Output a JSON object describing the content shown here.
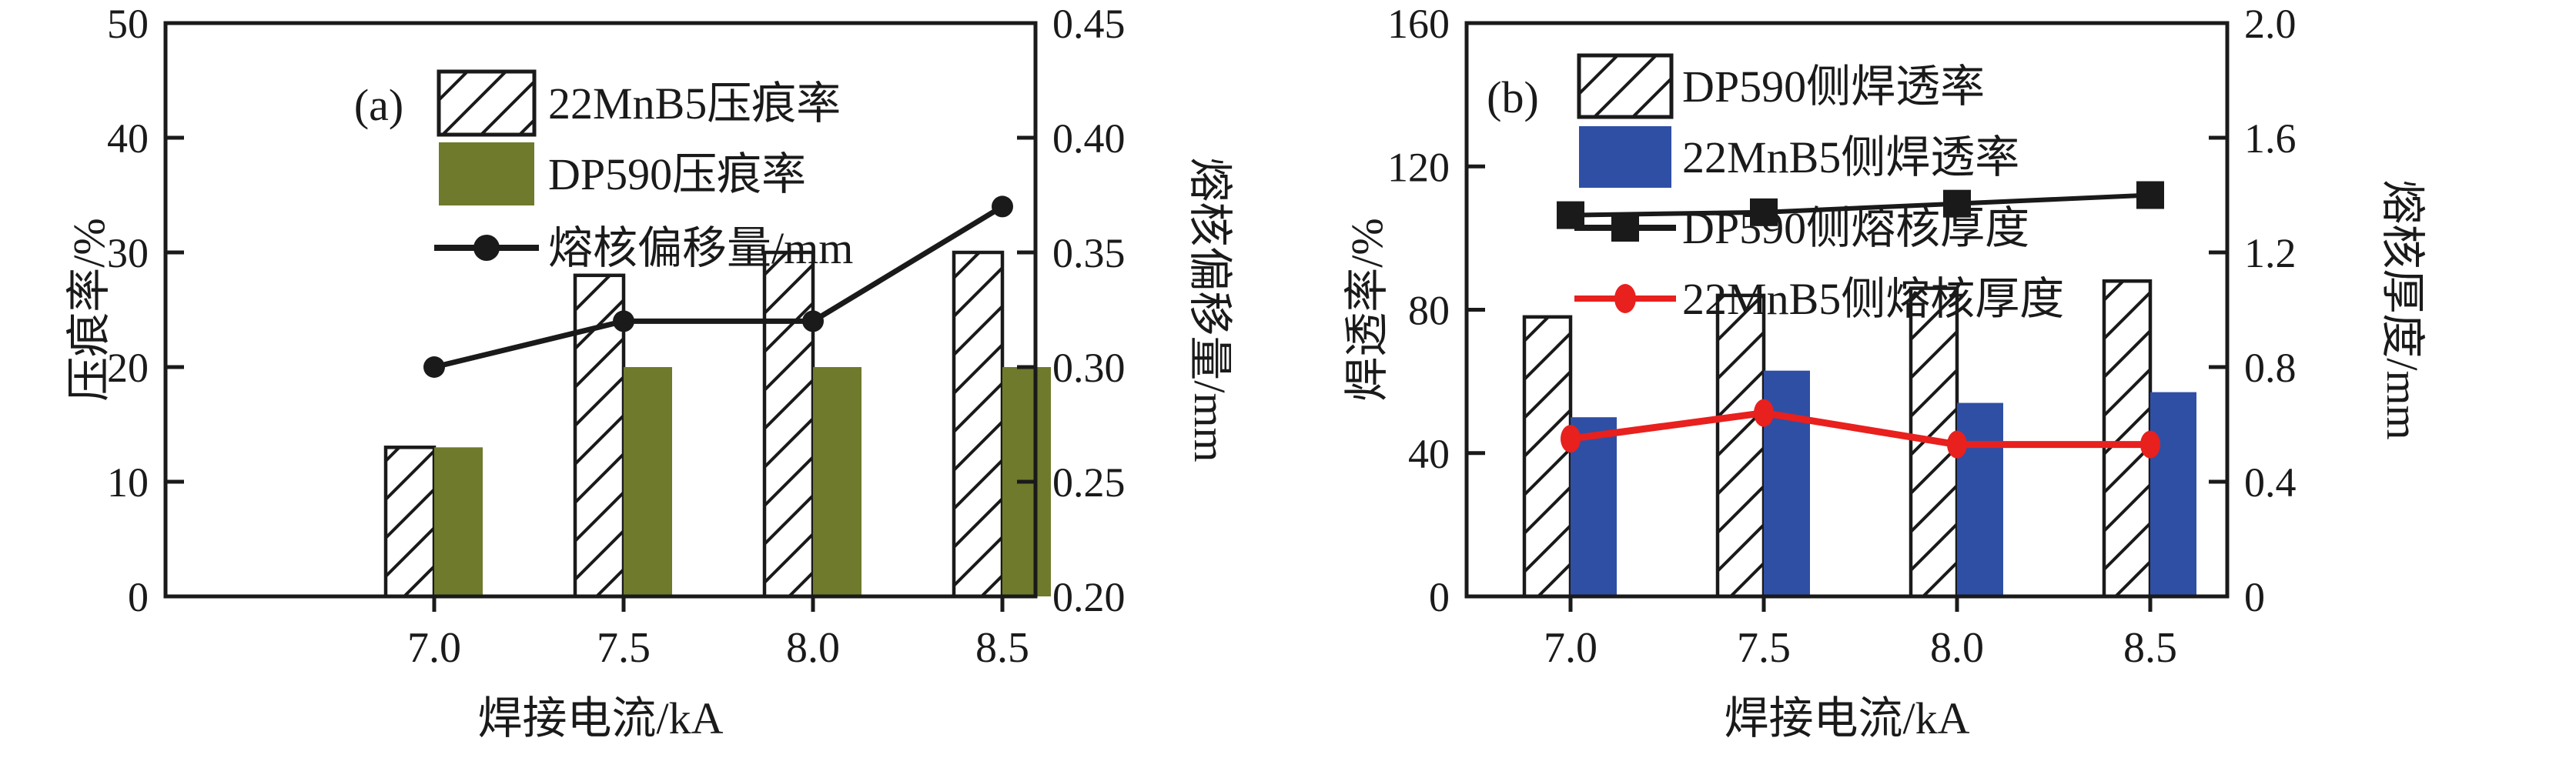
{
  "figure": {
    "background": "#ffffff",
    "axis_color": "#1a1a1a"
  },
  "chart_data": [
    {
      "type": "bar",
      "panel_label": "(a)",
      "categories": [
        "7.0",
        "7.5",
        "8.0",
        "8.5"
      ],
      "xlabel": "焊接电流/kA",
      "left_axis": {
        "label": "压痕率/%",
        "min": 0,
        "max": 50,
        "ticks": [
          "0",
          "10",
          "20",
          "30",
          "40",
          "50"
        ]
      },
      "right_axis": {
        "label": "熔核偏移量/mm",
        "min": 0.2,
        "max": 0.45,
        "ticks": [
          "0.20",
          "0.25",
          "0.30",
          "0.35",
          "0.40",
          "0.45"
        ]
      },
      "legend_position": "top-left-inside",
      "grid": false,
      "series": [
        {
          "name": "22MnB5压痕率",
          "kind": "bar",
          "fill": "hatch",
          "color": "#1a1a1a",
          "axis": "left",
          "values": [
            13,
            28,
            30,
            30
          ]
        },
        {
          "name": "DP590压痕率",
          "kind": "bar",
          "fill": "solid",
          "color": "#6F7A2C",
          "axis": "left",
          "values": [
            13,
            20,
            20,
            20
          ]
        },
        {
          "name": "熔核偏移量/mm",
          "kind": "line",
          "marker": "circle",
          "color": "#1a1a1a",
          "axis": "right",
          "values": [
            0.3,
            0.32,
            0.32,
            0.37
          ]
        }
      ]
    },
    {
      "type": "bar",
      "panel_label": "(b)",
      "categories": [
        "7.0",
        "7.5",
        "8.0",
        "8.5"
      ],
      "xlabel": "焊接电流/kA",
      "left_axis": {
        "label": "焊透率/%",
        "min": 0,
        "max": 160,
        "ticks": [
          "0",
          "40",
          "80",
          "120",
          "160"
        ]
      },
      "right_axis": {
        "label": "熔核厚度/mm",
        "min": 0,
        "max": 2.0,
        "ticks": [
          "0",
          "0.4",
          "0.8",
          "1.2",
          "1.6",
          "2.0"
        ]
      },
      "legend_position": "top-left-inside",
      "grid": false,
      "series": [
        {
          "name": "DP590侧焊透率",
          "kind": "bar",
          "fill": "hatch",
          "color": "#1a1a1a",
          "axis": "left",
          "values": [
            78,
            84,
            86,
            88
          ]
        },
        {
          "name": "22MnB5侧焊透率",
          "kind": "bar",
          "fill": "solid",
          "color": "#2F4FA5",
          "axis": "left",
          "values": [
            50,
            63,
            54,
            57
          ]
        },
        {
          "name": "DP590侧熔核厚度",
          "kind": "line",
          "marker": "square",
          "color": "#1a1a1a",
          "axis": "right",
          "values": [
            1.33,
            1.34,
            1.37,
            1.4
          ]
        },
        {
          "name": "22MnB5侧熔核厚度",
          "kind": "line",
          "marker": "ellipse",
          "color": "#E8201E",
          "axis": "right",
          "values": [
            0.55,
            0.64,
            0.53,
            0.53
          ]
        }
      ]
    }
  ]
}
